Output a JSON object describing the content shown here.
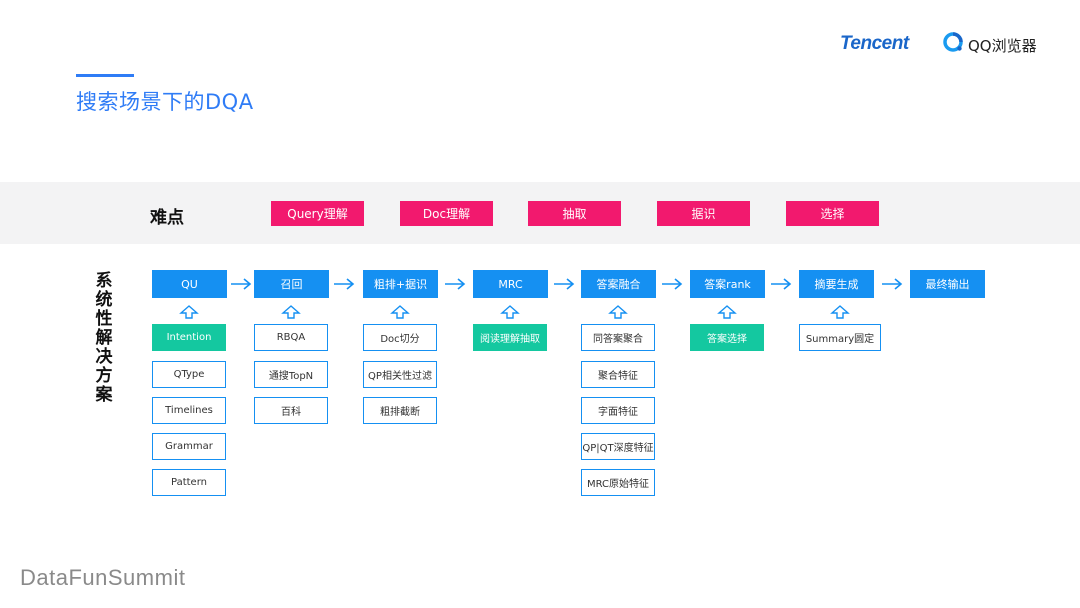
{
  "page": {
    "title": "搜索场景下的DQA",
    "footer": "DataFunSummit"
  },
  "logos": {
    "tencent": "Tencent",
    "qq_browser": "QQ浏览器"
  },
  "difficulties": {
    "label": "难点",
    "items": [
      "Query理解",
      "Doc理解",
      "抽取",
      "据识",
      "选择"
    ]
  },
  "solution": {
    "label": [
      "系",
      "统",
      "性",
      "解",
      "决",
      "方",
      "案"
    ],
    "stages": [
      {
        "name": "QU",
        "subs": [
          "Intention",
          "QType",
          "Timelines",
          "Grammar",
          "Pattern"
        ],
        "highlight": 0
      },
      {
        "name": "召回",
        "subs": [
          "RBQA",
          "通搜TopN",
          "百科"
        ],
        "highlight": null
      },
      {
        "name": "粗排+据识",
        "subs": [
          "Doc切分",
          "QP相关性过滤",
          "粗排截断"
        ],
        "highlight": null
      },
      {
        "name": "MRC",
        "subs": [
          "阅读理解抽取"
        ],
        "highlight": 0
      },
      {
        "name": "答案融合",
        "subs": [
          "同答案聚合",
          "聚合特征",
          "字面特征",
          "QP|QT深度特征",
          "MRC原始特征"
        ],
        "highlight": null
      },
      {
        "name": "答案rank",
        "subs": [
          "答案选择"
        ],
        "highlight": 0
      },
      {
        "name": "摘要生成",
        "subs": [
          "Summary圆定"
        ],
        "highlight": null
      },
      {
        "name": "最终输出",
        "subs": [],
        "highlight": null
      }
    ]
  },
  "colors": {
    "title_blue": "#2f7cf6",
    "stage_blue": "#1590f2",
    "difficulty_pink": "#f2196e",
    "highlight_green": "#14c8a0"
  }
}
